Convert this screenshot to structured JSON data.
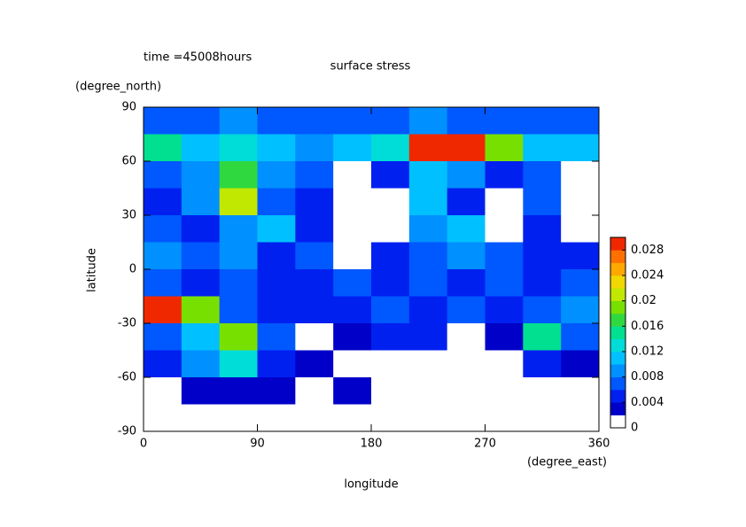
{
  "chart_data": {
    "type": "contour",
    "annotation": "time =45008hours",
    "title": "surface stress",
    "x_label": "longitude",
    "x_unit": "(degree_east)",
    "y_label": "latitude",
    "y_unit": "(degree_north)",
    "xlim": [
      0,
      360
    ],
    "xticks": [
      0,
      90,
      180,
      270,
      360
    ],
    "ylim": [
      -90,
      90
    ],
    "yticks": [
      -90,
      -60,
      -30,
      0,
      30,
      60,
      90
    ],
    "lon": [
      15,
      45,
      75,
      105,
      135,
      165,
      195,
      225,
      255,
      285,
      315,
      345
    ],
    "lat": [
      82.5,
      67.5,
      52.5,
      37.5,
      22.5,
      7.5,
      -7.5,
      -22.5,
      -37.5,
      -52.5,
      -67.5,
      -82.5
    ],
    "values": [
      [
        0.006,
        0.007,
        0.008,
        0.007,
        0.006,
        0.006,
        0.007,
        0.008,
        0.007,
        0.007,
        0.006,
        0.006
      ],
      [
        0.014,
        0.01,
        0.012,
        0.01,
        0.008,
        0.01,
        0.012,
        0.03,
        0.03,
        0.018,
        0.01,
        0.01
      ],
      [
        0.006,
        0.008,
        0.016,
        0.008,
        0.006,
        0.001,
        0.004,
        0.01,
        0.008,
        0.005,
        0.006,
        0.001
      ],
      [
        0.004,
        0.008,
        0.02,
        0.006,
        0.004,
        0.001,
        0.001,
        0.01,
        0.004,
        0.001,
        0.006,
        0.001
      ],
      [
        0.006,
        0.005,
        0.008,
        0.01,
        0.004,
        0.001,
        0.001,
        0.008,
        0.01,
        0.001,
        0.004,
        0.001
      ],
      [
        0.008,
        0.006,
        0.008,
        0.004,
        0.006,
        0.001,
        0.004,
        0.006,
        0.008,
        0.006,
        0.004,
        0.004
      ],
      [
        0.006,
        0.004,
        0.006,
        0.004,
        0.004,
        0.006,
        0.004,
        0.006,
        0.004,
        0.006,
        0.004,
        0.006
      ],
      [
        0.028,
        0.018,
        0.006,
        0.004,
        0.004,
        0.004,
        0.006,
        0.004,
        0.006,
        0.004,
        0.006,
        0.008
      ],
      [
        0.006,
        0.01,
        0.018,
        0.006,
        0.001,
        0.002,
        0.004,
        0.004,
        0.001,
        0.002,
        0.014,
        0.006
      ],
      [
        0.004,
        0.008,
        0.012,
        0.004,
        0.002,
        0.001,
        0.001,
        0.001,
        0.001,
        0.001,
        0.004,
        0.002
      ],
      [
        0.001,
        0.003,
        0.003,
        0.002,
        0.001,
        0.002,
        0.001,
        0.001,
        0.001,
        0.001,
        0.001,
        0.001
      ],
      [
        0.001,
        0.001,
        0.001,
        0.001,
        0.001,
        0.001,
        0.001,
        0.001,
        0.001,
        0.001,
        0.001,
        0.001
      ]
    ],
    "colorbar": {
      "lim": [
        0,
        0.03
      ],
      "ticks": [
        0,
        0.004,
        0.008,
        0.012,
        0.016,
        0.02,
        0.024,
        0.028
      ],
      "levels": [
        0,
        0.002,
        0.004,
        0.006,
        0.008,
        0.01,
        0.012,
        0.014,
        0.016,
        0.018,
        0.02,
        0.022,
        0.024,
        0.026,
        0.028,
        0.03
      ],
      "colors": [
        "#ffffff",
        "#0000c8",
        "#0020f0",
        "#0058ff",
        "#0090ff",
        "#00c0ff",
        "#00dcd8",
        "#00e090",
        "#30d840",
        "#78e000",
        "#c0e800",
        "#f0d800",
        "#ffa800",
        "#ff7000",
        "#f02800"
      ]
    }
  }
}
